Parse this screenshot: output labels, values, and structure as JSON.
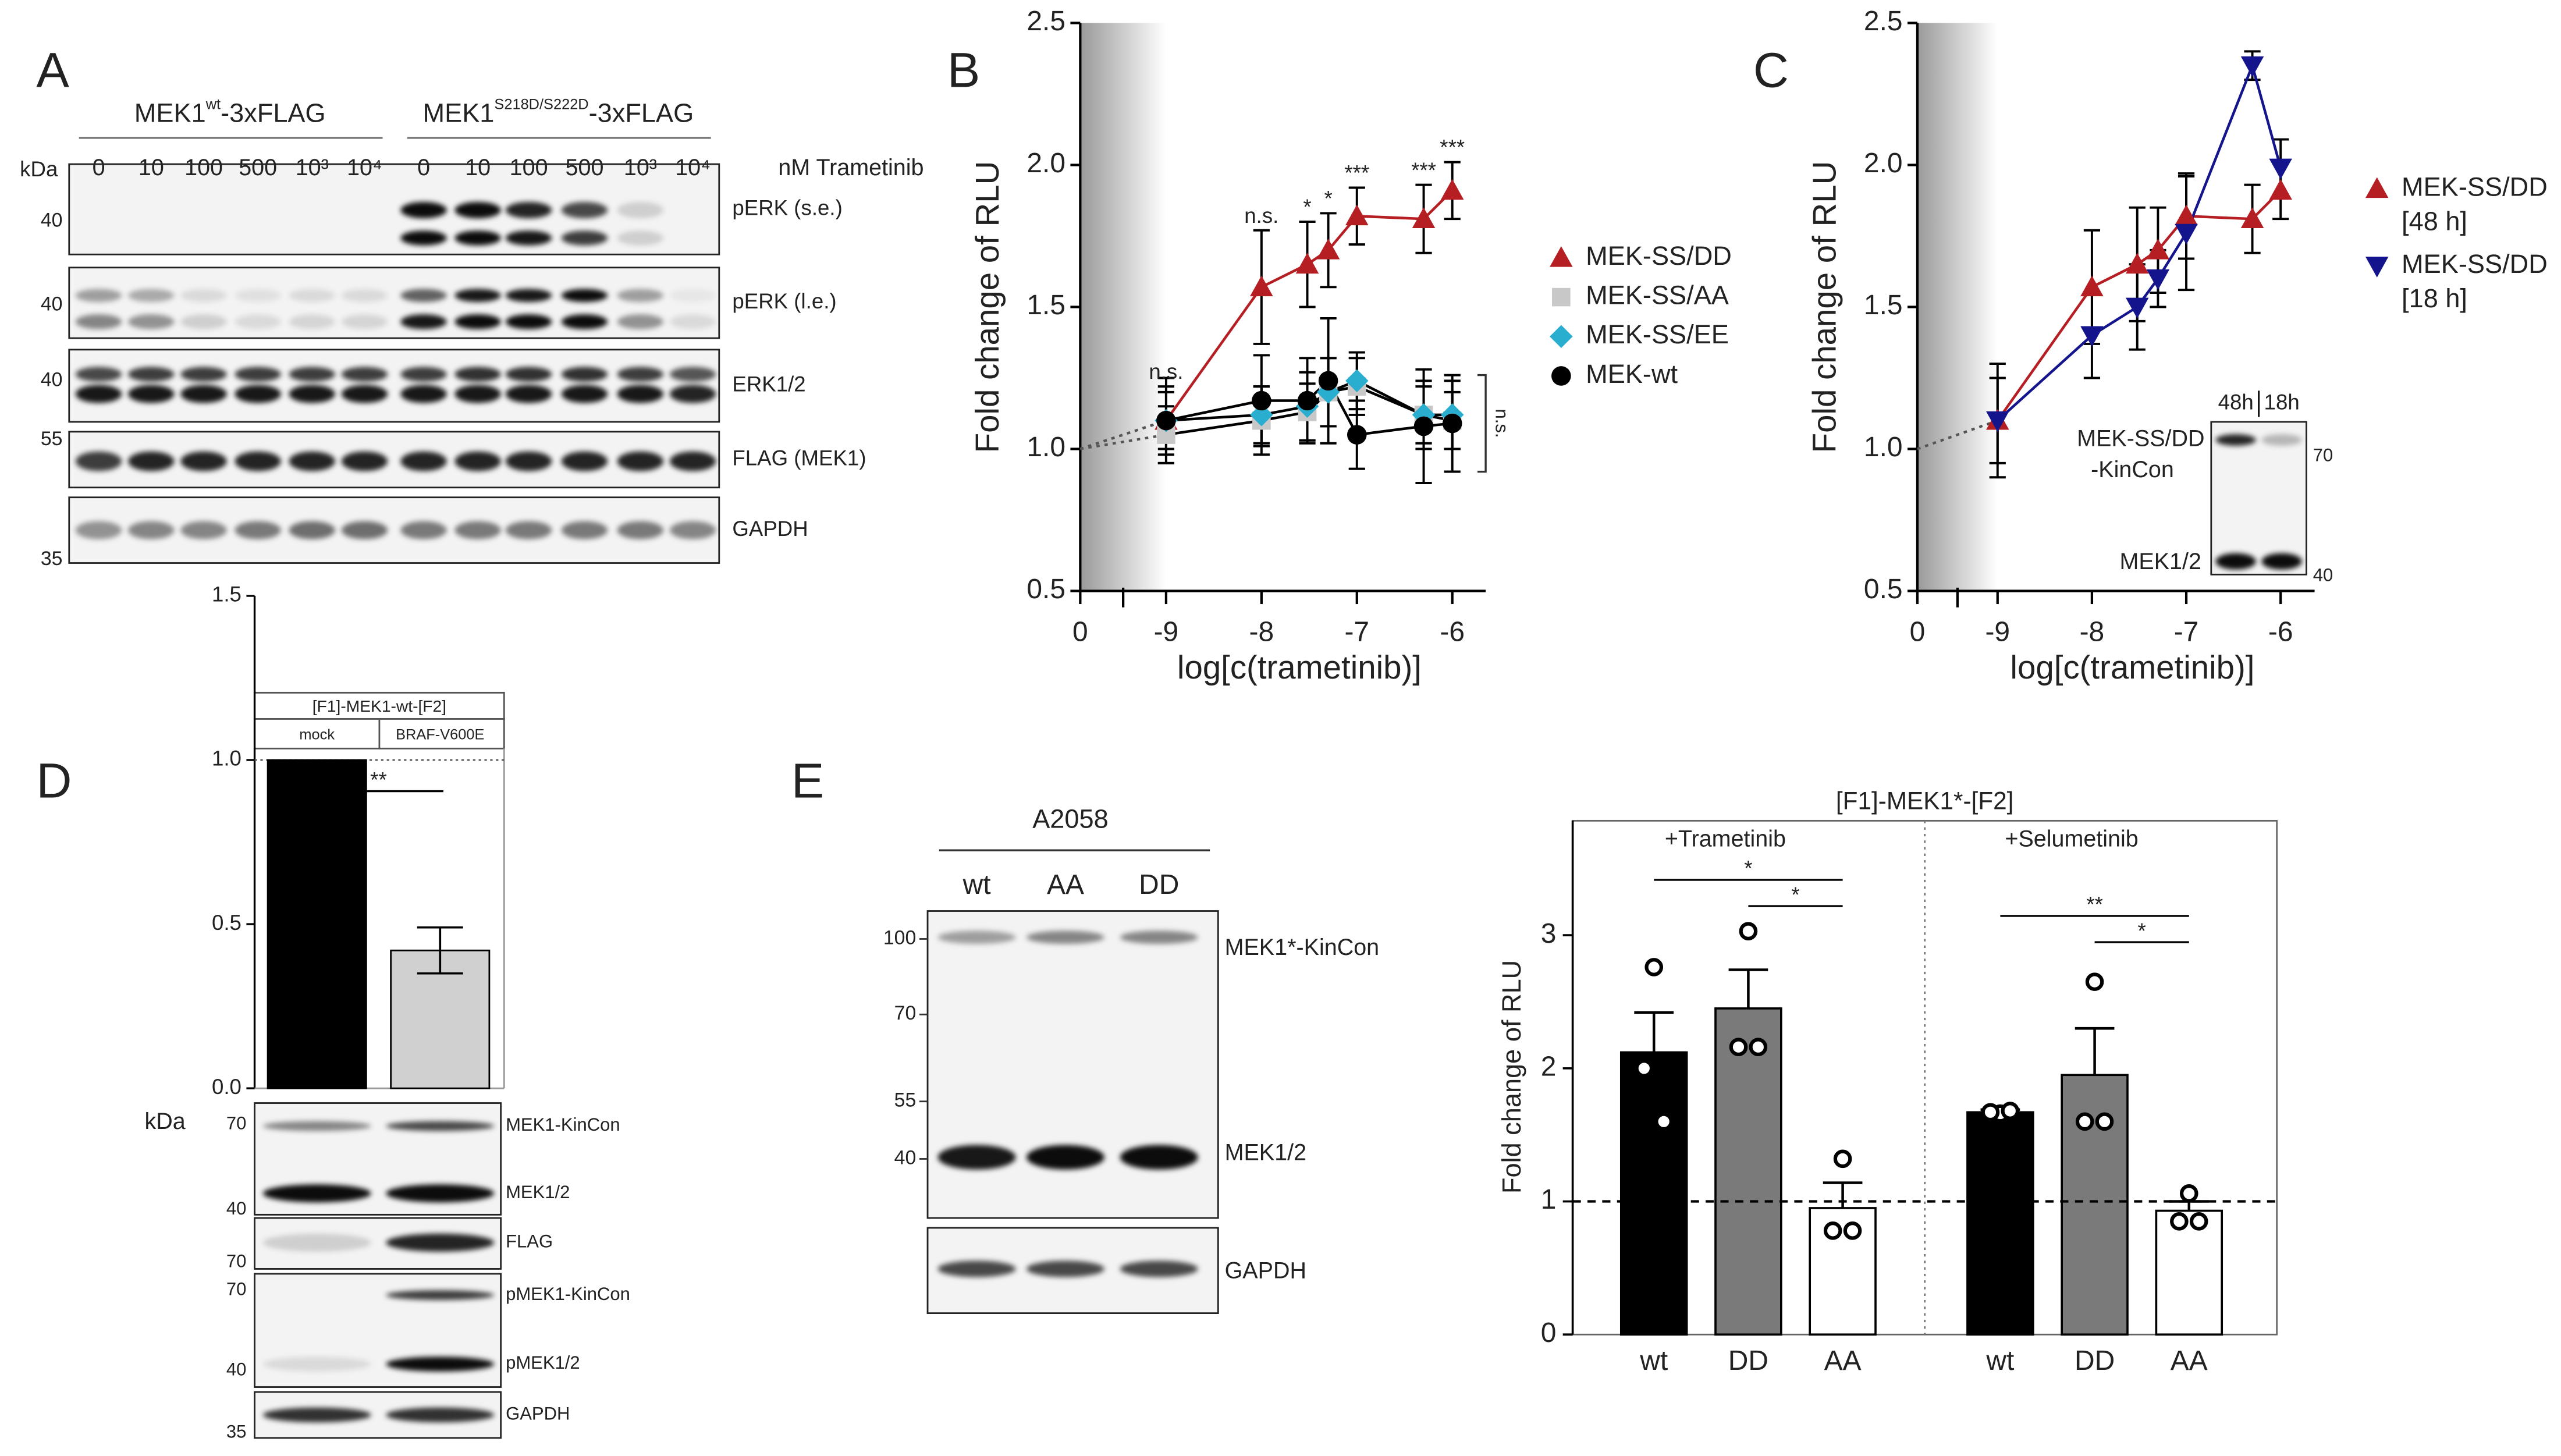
{
  "panel_labels": [
    "A",
    "B",
    "C",
    "D",
    "E"
  ],
  "blot_a": {
    "groups": [
      {
        "base": "MEK1",
        "sup": "wt",
        "suffix": "-3xFLAG"
      },
      {
        "base": "MEK1",
        "sup": "S218D/S222D",
        "suffix": "-3xFLAG"
      }
    ],
    "lanes": [
      "0",
      "10",
      "100",
      "500",
      "10³",
      "10⁴"
    ],
    "treatment": "nM Trametinib",
    "kda_title": "kDa",
    "rows": [
      {
        "label": "pERK (s.e.)",
        "kda": "40"
      },
      {
        "label": "pERK (l.e.)",
        "kda": "40"
      },
      {
        "label": "ERK1/2",
        "kda": "40"
      },
      {
        "label": "FLAG (MEK1)",
        "kda": "55"
      },
      {
        "label": "GAPDH",
        "kda": "35"
      }
    ]
  },
  "inset_c": {
    "lanes": [
      "48h",
      "18h"
    ],
    "label": [
      "MEK-SS/DD",
      "-KinCon"
    ],
    "loading": "MEK1/2",
    "kda": [
      "70",
      "40"
    ]
  },
  "blot_d": {
    "kda_title": "kDa",
    "blots": [
      {
        "bands": [
          {
            "label": "MEK1-KinCon",
            "kda": "70"
          },
          {
            "label": "MEK1/2",
            "kda": "40"
          }
        ]
      },
      {
        "bands": [
          {
            "label": "FLAG",
            "kda": "70"
          }
        ]
      },
      {
        "bands": [
          {
            "label": "pMEK1-KinCon",
            "kda": "70"
          },
          {
            "label": "pMEK1/2",
            "kda": "40"
          }
        ]
      },
      {
        "bands": [
          {
            "label": "GAPDH",
            "kda": "35"
          }
        ]
      }
    ]
  },
  "blot_e": {
    "title": "A2058",
    "lanes": [
      "wt",
      "AA",
      "DD"
    ],
    "markers": [
      "100",
      "70",
      "55",
      "40"
    ],
    "labels": [
      "MEK1*-KinCon",
      "MEK1/2"
    ],
    "loading": "GAPDH"
  },
  "chart_data": [
    {
      "type": "line",
      "ylabel": "Fold change of RLU",
      "xlabel": "log[c(trametinib)]",
      "x": [
        -9,
        -8,
        -7.52,
        -7.3,
        -7,
        -6.3,
        -6
      ],
      "xlim": [
        -9.9,
        -5.65
      ],
      "xticks": [
        -9,
        -8,
        -7,
        -6
      ],
      "origin_tick": 0,
      "baseline": 1,
      "ylim": [
        0.5,
        2.5
      ],
      "yticks": [
        0.5,
        {
          "value": 1,
          "label": "1.0"
        },
        1.5,
        {
          "value": 2,
          "label": "2.0"
        },
        2.5
      ],
      "series": [
        {
          "name": "MEK-SS/DD",
          "color": "#b51f24",
          "marker": "triangle",
          "values": [
            1.1,
            1.57,
            1.65,
            1.7,
            1.82,
            1.81,
            1.91
          ],
          "errors": [
            0.12,
            0.2,
            0.15,
            0.13,
            0.1,
            0.12,
            0.1
          ]
        },
        {
          "name": "MEK-SS/AA",
          "color": "#c8c8c8",
          "marker": "square",
          "values": [
            1.05,
            1.1,
            1.13,
            1.2,
            1.22,
            1.12,
            1.1
          ],
          "errors": [
            0.1,
            0.12,
            0.1,
            0.12,
            0.1,
            0.1,
            0.1
          ]
        },
        {
          "name": "MEK-SS/EE",
          "color": "#2aaed0",
          "marker": "diamond",
          "values": [
            1.1,
            1.12,
            1.15,
            1.2,
            1.24,
            1.12,
            1.12
          ],
          "errors": [
            0.1,
            0.1,
            0.12,
            0.12,
            0.1,
            0.12,
            0.12
          ]
        },
        {
          "name": "MEK-wt",
          "color": "#000000",
          "marker": "circle",
          "values": [
            1.1,
            1.17,
            1.17,
            1.24,
            1.05,
            1.08,
            1.09
          ],
          "errors": [
            0.15,
            0.16,
            0.15,
            0.22,
            0.12,
            0.2,
            0.17
          ]
        }
      ],
      "significance": [
        "n.s.",
        "n.s.",
        "*",
        "*",
        "***",
        "***",
        "***"
      ],
      "bracket_label": "n.s."
    },
    {
      "type": "line",
      "ylabel": "Fold change of RLU",
      "xlabel": "log[c(trametinib)]",
      "x": [
        -9,
        -8,
        -7.52,
        -7.3,
        -7,
        -6.3,
        -6
      ],
      "xlim": [
        -9.85,
        -5.64
      ],
      "xticks": [
        -9,
        -8,
        -7,
        -6
      ],
      "origin_tick": 0,
      "baseline": 1,
      "ylim": [
        0.5,
        2.5
      ],
      "yticks": [
        0.5,
        {
          "value": 1,
          "label": "1.0"
        },
        1.5,
        {
          "value": 2,
          "label": "2.0"
        },
        2.5
      ],
      "series": [
        {
          "name": "MEK-SS/DD [48 h]",
          "color": "#b51f24",
          "marker": "triangle",
          "values": [
            1.1,
            1.57,
            1.65,
            1.7,
            1.82,
            1.81,
            1.91
          ],
          "errors": [
            0.2,
            0.2,
            0.2,
            0.15,
            0.15,
            0.12,
            0.1
          ]
        },
        {
          "name": "MEK-SS/DD [18 h]",
          "color": "#14148c",
          "marker": "invtriangle",
          "values": [
            1.1,
            1.4,
            1.5,
            1.6,
            1.76,
            2.35,
            1.99
          ],
          "errors": [
            0.15,
            0.15,
            0.15,
            0.1,
            0.2,
            0.05,
            0.1
          ]
        }
      ]
    },
    {
      "type": "bar",
      "header": "[F1]-MEK1-wt-[F2]",
      "categories": [
        "mock",
        "BRAF-V600E"
      ],
      "values": [
        1,
        0.42
      ],
      "errors": [
        null,
        0.07
      ],
      "colors": [
        "#000000",
        "#d0d0d0"
      ],
      "ylim": [
        0,
        1.5
      ],
      "yticks": [
        {
          "value": 0,
          "label": "0.0"
        },
        0.5,
        {
          "value": 1,
          "label": "1.0"
        },
        1.5
      ],
      "reference_line": 1,
      "significance": "**"
    },
    {
      "type": "grouped_bar",
      "title": "[F1]-MEK1*-[F2]",
      "ylabel": "Fold change of RLU",
      "categories": [
        "wt",
        "DD",
        "AA"
      ],
      "colors": [
        "#000000",
        "#7a7a7a",
        "#ffffff"
      ],
      "ylim": [
        0,
        3.86
      ],
      "yticks": [
        0,
        1,
        2,
        3
      ],
      "reference_line": 1,
      "groups": [
        {
          "name": "+Trametinib",
          "values": [
            2.12,
            2.45,
            0.95
          ],
          "errors": [
            0.3,
            0.29,
            0.19
          ],
          "points": [
            [
              2.76,
              2.0,
              1.6
            ],
            [
              3.03,
              2.16,
              2.16
            ],
            [
              1.32,
              0.78,
              0.78
            ]
          ],
          "comparisons": [
            {
              "from": 0,
              "to": 2,
              "label": "*"
            },
            {
              "from": 1,
              "to": 2,
              "label": "*"
            }
          ]
        },
        {
          "name": "+Selumetinib",
          "values": [
            1.67,
            1.95,
            0.93
          ],
          "errors": [
            0.02,
            0.35,
            0.07
          ],
          "points": [
            [
              1.66,
              1.67,
              1.68
            ],
            [
              2.65,
              1.6,
              1.6
            ],
            [
              1.06,
              0.85,
              0.85
            ]
          ],
          "comparisons": [
            {
              "from": 0,
              "to": 2,
              "label": "**"
            },
            {
              "from": 1,
              "to": 2,
              "label": "*"
            }
          ]
        }
      ]
    }
  ]
}
